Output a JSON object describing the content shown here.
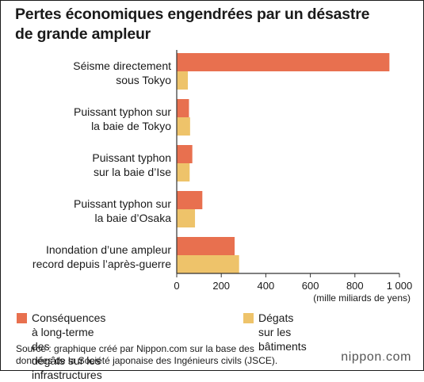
{
  "title_line1": "Pertes économiques engendrées par un désastre",
  "title_line2": "de grande ampleur",
  "unit_label": "(mille miliards de yens)",
  "source_line1": "Source : graphique créé par Nippon.com sur la base des",
  "source_line2": "données de la Société japonaise des Ingénieurs civils (JSCE).",
  "brand": {
    "name": "nippon",
    "dot": ".",
    "tld": "com"
  },
  "colors": {
    "series_a": "#E8704F",
    "series_b": "#EEC36A",
    "axis": "#333333",
    "grid": "#cccccc"
  },
  "chart_data": {
    "type": "bar",
    "orientation": "horizontal",
    "categories": [
      [
        "Séisme directement",
        "sous Tokyo"
      ],
      [
        "Puissant typhon sur",
        "la baie de Tokyo"
      ],
      [
        "Puissant typhon",
        "sur la baie d’Ise"
      ],
      [
        "Puissant typhon sur",
        "la baie d’Osaka"
      ],
      [
        "Inondation d’une ampleur",
        "record depuis l’après-guerre"
      ]
    ],
    "series": [
      {
        "name": [
          "Conséquences à long-terme des",
          "dégâts sur les infrastructures"
        ],
        "values": [
          955,
          55,
          70,
          115,
          260
        ]
      },
      {
        "name": [
          "Dégats sur les bâtiments"
        ],
        "values": [
          50,
          60,
          58,
          82,
          280
        ]
      }
    ],
    "xlim": [
      0,
      1000
    ],
    "xticks": [
      0,
      200,
      400,
      600,
      800,
      1000
    ],
    "xtick_labels": [
      "0",
      "200",
      "400",
      "600",
      "800",
      "1 000"
    ],
    "xlabel": "(mille miliards de yens)",
    "legend_position": "bottom",
    "grid": false
  }
}
